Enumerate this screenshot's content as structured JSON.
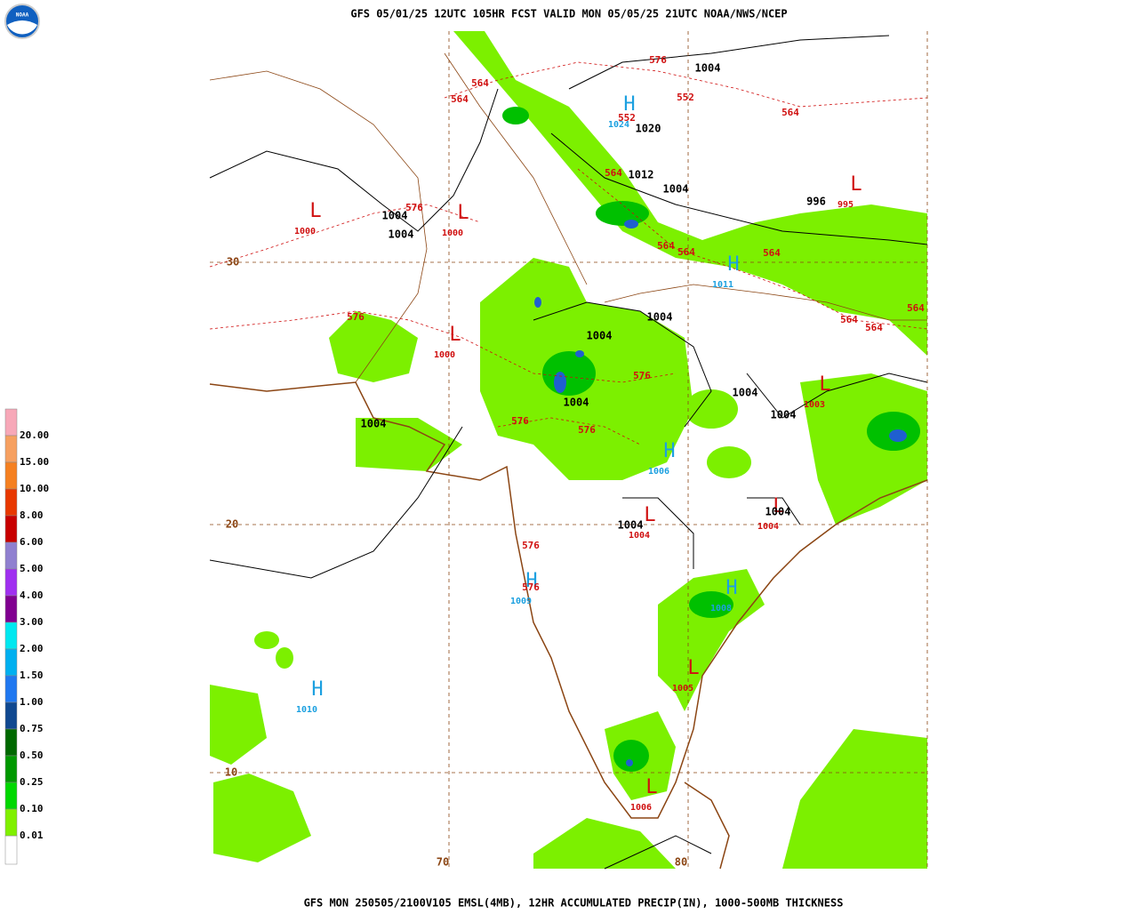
{
  "header": {
    "title": "GFS 05/01/25 12UTC 105HR FCST VALID MON 05/05/25 21UTC NOAA/NWS/NCEP"
  },
  "footer": {
    "text": "GFS MON 250505/2100V105 EMSL(4MB), 12HR ACCUMULATED PRECIP(IN), 1000-500MB THICKNESS"
  },
  "legend": {
    "labels": [
      {
        "label": "20.00",
        "color": "#f7a8b8"
      },
      {
        "label": "15.00",
        "color": "#f6a060"
      },
      {
        "label": "10.00",
        "color": "#f58020"
      },
      {
        "label": "8.00",
        "color": "#e83800"
      },
      {
        "label": "6.00",
        "color": "#c80000"
      },
      {
        "label": "5.00",
        "color": "#9080d0"
      },
      {
        "label": "4.00",
        "color": "#a030f0"
      },
      {
        "label": "3.00",
        "color": "#800090"
      },
      {
        "label": "2.00",
        "color": "#00e8f0"
      },
      {
        "label": "1.50",
        "color": "#00b0f0"
      },
      {
        "label": "1.00",
        "color": "#2078f0"
      },
      {
        "label": "0.75",
        "color": "#104890"
      },
      {
        "label": "0.50",
        "color": "#006800"
      },
      {
        "label": "0.25",
        "color": "#009800"
      },
      {
        "label": "0.10",
        "color": "#00d800"
      },
      {
        "label": "0.01",
        "color": "#80f000"
      }
    ]
  },
  "grid_labels": [
    "30",
    "20",
    "10",
    "70",
    "80"
  ],
  "centers": [
    {
      "symbol": "H",
      "value": "1024"
    },
    {
      "symbol": "L",
      "value": "1000"
    },
    {
      "symbol": "L",
      "value": "1000"
    },
    {
      "symbol": "L",
      "value": "995"
    },
    {
      "symbol": "H",
      "value": "1011"
    },
    {
      "symbol": "L",
      "value": "1000"
    },
    {
      "symbol": "L",
      "value": "1003"
    },
    {
      "symbol": "H",
      "value": "1006"
    },
    {
      "symbol": "L",
      "value": "1004"
    },
    {
      "symbol": "L",
      "value": "1004"
    },
    {
      "symbol": "H",
      "value": "1009"
    },
    {
      "symbol": "H",
      "value": "1008"
    },
    {
      "symbol": "L",
      "value": "1005"
    },
    {
      "symbol": "H",
      "value": "1010"
    },
    {
      "symbol": "L",
      "value": "1006"
    }
  ],
  "isobar_labels": [
    "1004",
    "1020",
    "1012",
    "1004",
    "996",
    "1004",
    "1004",
    "1004",
    "1004",
    "1004",
    "1004",
    "1004",
    "1004",
    "1004",
    "1004"
  ],
  "thickness_labels": [
    "576",
    "564",
    "564",
    "552",
    "552",
    "564",
    "564",
    "576",
    "564",
    "564",
    "564",
    "576",
    "564",
    "564",
    "564",
    "576",
    "576",
    "576",
    "576",
    "576"
  ]
}
